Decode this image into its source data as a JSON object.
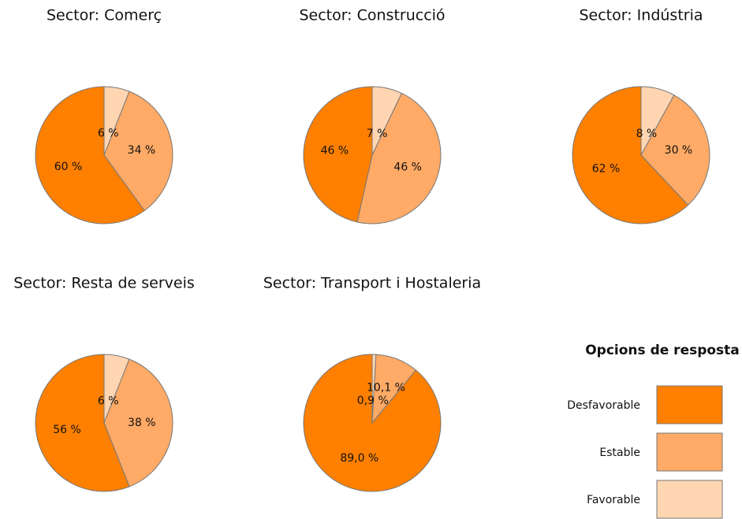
{
  "chart_data": [
    {
      "type": "pie",
      "title": "Sector: Comerç",
      "categories": [
        "Desfavorable",
        "Estable",
        "Favorable"
      ],
      "values": [
        60,
        34,
        6
      ],
      "value_labels": [
        "60 %",
        "34 %",
        "6 %"
      ],
      "colors": [
        "#ff8000",
        "#ffaa66",
        "#ffd5b2"
      ]
    },
    {
      "type": "pie",
      "title": "Sector: Construcció",
      "categories": [
        "Desfavorable",
        "Estable",
        "Favorable"
      ],
      "values": [
        46,
        46,
        7
      ],
      "value_labels": [
        "46 %",
        "46 %",
        "7 %"
      ],
      "colors": [
        "#ff8000",
        "#ffaa66",
        "#ffd5b2"
      ]
    },
    {
      "type": "pie",
      "title": "Sector: Indústria",
      "categories": [
        "Desfavorable",
        "Estable",
        "Favorable"
      ],
      "values": [
        62,
        30,
        8
      ],
      "value_labels": [
        "62 %",
        "30 %",
        "8 %"
      ],
      "colors": [
        "#ff8000",
        "#ffaa66",
        "#ffd5b2"
      ]
    },
    {
      "type": "pie",
      "title": "Sector: Resta de serveis",
      "categories": [
        "Desfavorable",
        "Estable",
        "Favorable"
      ],
      "values": [
        56,
        38,
        6
      ],
      "value_labels": [
        "56 %",
        "38 %",
        "6 %"
      ],
      "colors": [
        "#ff8000",
        "#ffaa66",
        "#ffd5b2"
      ]
    },
    {
      "type": "pie",
      "title": "Sector: Transport i Hostaleria",
      "categories": [
        "Desfavorable",
        "Estable",
        "Favorable"
      ],
      "values": [
        89.0,
        10.1,
        0.9
      ],
      "value_labels": [
        "89,0 %",
        "10,1 %",
        "0,9 %"
      ],
      "colors": [
        "#ff8000",
        "#ffaa66",
        "#ffd5b2"
      ]
    }
  ],
  "legend": {
    "title": "Opcions de resposta",
    "items": [
      "Desfavorable",
      "Estable",
      "Favorable"
    ],
    "colors": [
      "#ff8000",
      "#ffaa66",
      "#ffd5b2"
    ]
  }
}
